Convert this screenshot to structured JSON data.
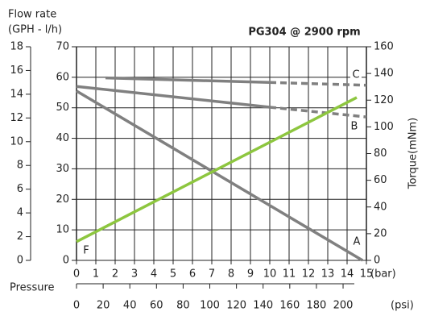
{
  "chart_data": {
    "type": "line",
    "title": "PG304 @ 2900 rpm",
    "flow_label": "Flow rate",
    "flow_unit": "(GPH - l/h)",
    "y2_label": "Torque(mNm)",
    "x_unit": "(bar)",
    "psi_label": "Pressure",
    "psi_unit": "(psi)",
    "xlim": [
      0,
      15
    ],
    "xticks": [
      0,
      1,
      2,
      3,
      4,
      5,
      6,
      7,
      8,
      9,
      10,
      11,
      12,
      13,
      14,
      15
    ],
    "ylim": [
      0,
      70
    ],
    "yticks": [
      0,
      10,
      20,
      30,
      40,
      50,
      60,
      70
    ],
    "y2lim": [
      0,
      160
    ],
    "y2ticks": [
      0,
      20,
      40,
      60,
      80,
      100,
      120,
      140,
      160
    ],
    "gph_lim": [
      0,
      18
    ],
    "gph_ticks": [
      0,
      2,
      4,
      6,
      8,
      10,
      12,
      14,
      16,
      18
    ],
    "psi_lim": [
      0,
      217.5
    ],
    "psi_ticks": [
      0,
      20,
      40,
      60,
      80,
      100,
      120,
      140,
      160,
      180,
      200
    ],
    "grid": true,
    "series": [
      {
        "name": "C",
        "color": "#808080",
        "x": [
          1.5,
          10,
          15
        ],
        "values": [
          59.8,
          58.3,
          57.4
        ],
        "segment_styles": [
          "solid",
          "dashed"
        ]
      },
      {
        "name": "B",
        "color": "#808080",
        "x": [
          0,
          10,
          15
        ],
        "values": [
          57,
          50.2,
          47
        ],
        "segment_styles": [
          "solid",
          "dashed"
        ]
      },
      {
        "name": "A",
        "color": "#808080",
        "x": [
          0,
          14.8
        ],
        "values": [
          55.5,
          0
        ],
        "segment_styles": [
          "solid"
        ]
      },
      {
        "name": "F",
        "color": "#8dc63f",
        "axis": "y2",
        "x": [
          0,
          14.5
        ],
        "values": [
          14,
          122
        ],
        "segment_styles": [
          "solid"
        ]
      }
    ]
  }
}
